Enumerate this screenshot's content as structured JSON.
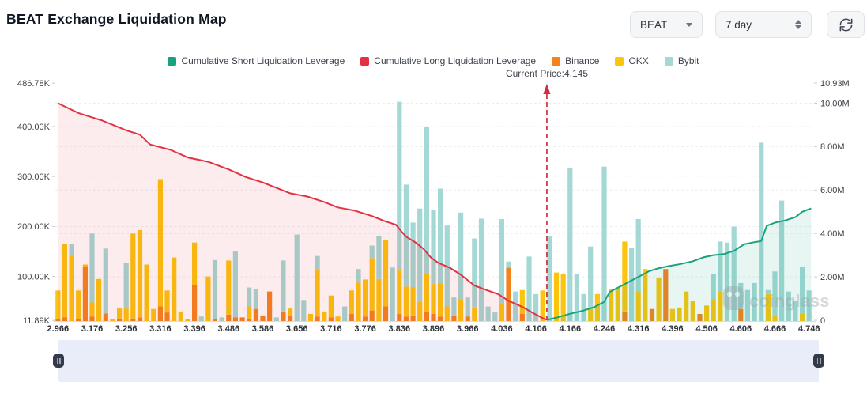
{
  "header": {
    "title": "BEAT Exchange Liquidation Map"
  },
  "controls": {
    "symbol": "BEAT",
    "period": "7 day"
  },
  "legend": [
    {
      "label": "Cumulative Short Liquidation Leverage",
      "color": "#17a37e"
    },
    {
      "label": "Cumulative Long Liquidation Leverage",
      "color": "#e23143"
    },
    {
      "label": "Binance",
      "color": "#f5831d"
    },
    {
      "label": "OKX",
      "color": "#fcc40d"
    },
    {
      "label": "Bybit",
      "color": "#a3d8d4"
    }
  ],
  "watermark": "coinglass",
  "chart_data": {
    "type": "bar",
    "subtype": "stacked bars + cumulative lines (liquidation map)",
    "title": "BEAT Exchange Liquidation Map",
    "current_price": {
      "label": "Current Price:4.145",
      "value": 4.145,
      "bar_index": 71.6
    },
    "x_tick_labels": [
      "2.966",
      "3.176",
      "3.256",
      "3.316",
      "3.396",
      "3.486",
      "3.586",
      "3.656",
      "3.716",
      "3.776",
      "3.836",
      "3.896",
      "3.966",
      "4.036",
      "4.106",
      "4.166",
      "4.246",
      "4.316",
      "4.396",
      "4.506",
      "4.606",
      "4.666",
      "4.746"
    ],
    "bars_per_tick": 5,
    "left_axis": {
      "unit": "K",
      "ticks": [
        {
          "label": "486.78K",
          "k": 486.78
        },
        {
          "label": "400.00K",
          "k": 400
        },
        {
          "label": "300.00K",
          "k": 300
        },
        {
          "label": "200.00K",
          "k": 200
        },
        {
          "label": "100.00K",
          "k": 100
        },
        {
          "label": "11.89K",
          "k": 11.89
        }
      ]
    },
    "right_axis": {
      "unit": "M",
      "ticks": [
        {
          "label": "10.93M",
          "m": 10.93
        },
        {
          "label": "10.00M",
          "m": 10
        },
        {
          "label": "8.00M",
          "m": 8
        },
        {
          "label": "6.00M",
          "m": 6
        },
        {
          "label": "4.00M",
          "m": 4
        },
        {
          "label": "2.00M",
          "m": 2
        },
        {
          "label": "0",
          "m": 0
        }
      ]
    },
    "series_order": [
      "Binance",
      "OKX",
      "Bybit"
    ],
    "colors": {
      "binance": "#f5831d",
      "okx": "#fcc40d",
      "bybit": "#a3d8d4",
      "long": "#e23143",
      "short": "#17a37e",
      "price_line": "#d22d3f",
      "long_fill": "rgba(226,49,67,0.09)",
      "short_fill": "rgba(23,163,126,0.10)"
    },
    "bars_k": [
      [
        4,
        58,
        0
      ],
      [
        8,
        148,
        0
      ],
      [
        0,
        132,
        24
      ],
      [
        5,
        57,
        0
      ],
      [
        110,
        4,
        0
      ],
      [
        10,
        28,
        138
      ],
      [
        0,
        85,
        0
      ],
      [
        16,
        0,
        130
      ],
      [
        0,
        4,
        0
      ],
      [
        4,
        22,
        0
      ],
      [
        0,
        26,
        92
      ],
      [
        6,
        170,
        0
      ],
      [
        8,
        175,
        0
      ],
      [
        0,
        114,
        0
      ],
      [
        0,
        25,
        0
      ],
      [
        30,
        255,
        0
      ],
      [
        18,
        44,
        0
      ],
      [
        0,
        128,
        0
      ],
      [
        0,
        20,
        0
      ],
      [
        0,
        4,
        0
      ],
      [
        72,
        86,
        0
      ],
      [
        0,
        0,
        10
      ],
      [
        0,
        90,
        0
      ],
      [
        5,
        0,
        118
      ],
      [
        0,
        0,
        8
      ],
      [
        14,
        108,
        0
      ],
      [
        8,
        0,
        132
      ],
      [
        8,
        0,
        0
      ],
      [
        5,
        25,
        38
      ],
      [
        25,
        0,
        40
      ],
      [
        12,
        0,
        0
      ],
      [
        60,
        0,
        0
      ],
      [
        0,
        0,
        8
      ],
      [
        20,
        0,
        102
      ],
      [
        12,
        14,
        0
      ],
      [
        0,
        0,
        174
      ],
      [
        0,
        0,
        43
      ],
      [
        0,
        15,
        0
      ],
      [
        10,
        95,
        26
      ],
      [
        0,
        20,
        0
      ],
      [
        8,
        44,
        0
      ],
      [
        0,
        10,
        0
      ],
      [
        0,
        0,
        30
      ],
      [
        15,
        47,
        0
      ],
      [
        0,
        78,
        27
      ],
      [
        10,
        74,
        0
      ],
      [
        22,
        105,
        25
      ],
      [
        0,
        85,
        86
      ],
      [
        30,
        133,
        0
      ],
      [
        0,
        0,
        108
      ],
      [
        15,
        90,
        335
      ],
      [
        10,
        60,
        204
      ],
      [
        12,
        56,
        130
      ],
      [
        0,
        40,
        186
      ],
      [
        20,
        75,
        295
      ],
      [
        15,
        60,
        149
      ],
      [
        10,
        66,
        190
      ],
      [
        0,
        30,
        162
      ],
      [
        12,
        0,
        36
      ],
      [
        0,
        45,
        173
      ],
      [
        10,
        0,
        38
      ],
      [
        0,
        28,
        138
      ],
      [
        0,
        0,
        206
      ],
      [
        0,
        0,
        30
      ],
      [
        0,
        0,
        18
      ],
      [
        0,
        35,
        170
      ],
      [
        108,
        0,
        12
      ],
      [
        0,
        0,
        60
      ],
      [
        15,
        48,
        0
      ],
      [
        0,
        0,
        130
      ],
      [
        0,
        0,
        55
      ],
      [
        0,
        62,
        0
      ],
      [
        0,
        0,
        170
      ],
      [
        0,
        98,
        0
      ],
      [
        0,
        96,
        0
      ],
      [
        0,
        0,
        308
      ],
      [
        0,
        0,
        95
      ],
      [
        0,
        0,
        55
      ],
      [
        0,
        25,
        125
      ],
      [
        0,
        55,
        0
      ],
      [
        0,
        0,
        310
      ],
      [
        0,
        65,
        0
      ],
      [
        0,
        68,
        0
      ],
      [
        20,
        140,
        0
      ],
      [
        0,
        0,
        148
      ],
      [
        0,
        60,
        145
      ],
      [
        0,
        105,
        0
      ],
      [
        25,
        0,
        0
      ],
      [
        0,
        88,
        0
      ],
      [
        105,
        0,
        0
      ],
      [
        0,
        25,
        0
      ],
      [
        0,
        28,
        0
      ],
      [
        0,
        60,
        0
      ],
      [
        0,
        42,
        0
      ],
      [
        15,
        0,
        0
      ],
      [
        0,
        32,
        0
      ],
      [
        0,
        45,
        50
      ],
      [
        0,
        60,
        100
      ],
      [
        0,
        0,
        158
      ],
      [
        0,
        0,
        190
      ],
      [
        25,
        0,
        52
      ],
      [
        0,
        0,
        63
      ],
      [
        0,
        0,
        77
      ],
      [
        0,
        0,
        358
      ],
      [
        0,
        55,
        8
      ],
      [
        0,
        12,
        88
      ],
      [
        0,
        0,
        242
      ],
      [
        0,
        0,
        60
      ],
      [
        0,
        0,
        42
      ],
      [
        0,
        15,
        95
      ],
      [
        0,
        0,
        62
      ]
    ],
    "cum_long_m": [
      [
        0,
        10.0
      ],
      [
        3,
        9.55
      ],
      [
        6.5,
        9.2
      ],
      [
        10,
        8.75
      ],
      [
        12,
        8.55
      ],
      [
        13.5,
        8.1
      ],
      [
        16.5,
        7.85
      ],
      [
        19,
        7.5
      ],
      [
        22,
        7.3
      ],
      [
        25,
        6.95
      ],
      [
        27.5,
        6.6
      ],
      [
        30,
        6.35
      ],
      [
        32,
        6.1
      ],
      [
        34,
        5.85
      ],
      [
        36.5,
        5.7
      ],
      [
        39,
        5.45
      ],
      [
        41,
        5.2
      ],
      [
        43.5,
        5.05
      ],
      [
        46,
        4.8
      ],
      [
        48,
        4.55
      ],
      [
        49.5,
        4.4
      ],
      [
        50.3,
        4.1
      ],
      [
        51,
        3.85
      ],
      [
        52.3,
        3.6
      ],
      [
        53.5,
        3.3
      ],
      [
        54.6,
        2.9
      ],
      [
        55.7,
        2.65
      ],
      [
        57.5,
        2.4
      ],
      [
        59,
        2.1
      ],
      [
        61,
        1.6
      ],
      [
        62.7,
        1.4
      ],
      [
        64.5,
        1.2
      ],
      [
        66,
        0.9
      ],
      [
        68,
        0.62
      ],
      [
        69.6,
        0.33
      ],
      [
        71,
        0.1
      ],
      [
        71.6,
        0.02
      ]
    ],
    "cum_short_m": [
      [
        71.6,
        0.02
      ],
      [
        73,
        0.12
      ],
      [
        75,
        0.3
      ],
      [
        77,
        0.45
      ],
      [
        78.5,
        0.6
      ],
      [
        80,
        0.85
      ],
      [
        80.8,
        1.3
      ],
      [
        82,
        1.5
      ],
      [
        83.5,
        1.75
      ],
      [
        85,
        2.0
      ],
      [
        86.5,
        2.25
      ],
      [
        88,
        2.4
      ],
      [
        89.5,
        2.5
      ],
      [
        91,
        2.58
      ],
      [
        93,
        2.72
      ],
      [
        94.5,
        2.9
      ],
      [
        96,
        3.0
      ],
      [
        97.5,
        3.05
      ],
      [
        99,
        3.2
      ],
      [
        100.5,
        3.5
      ],
      [
        102,
        3.6
      ],
      [
        103,
        3.65
      ],
      [
        103.8,
        4.35
      ],
      [
        105,
        4.5
      ],
      [
        106.5,
        4.6
      ],
      [
        108,
        4.75
      ],
      [
        109,
        5.0
      ],
      [
        110.3,
        5.15
      ]
    ]
  }
}
